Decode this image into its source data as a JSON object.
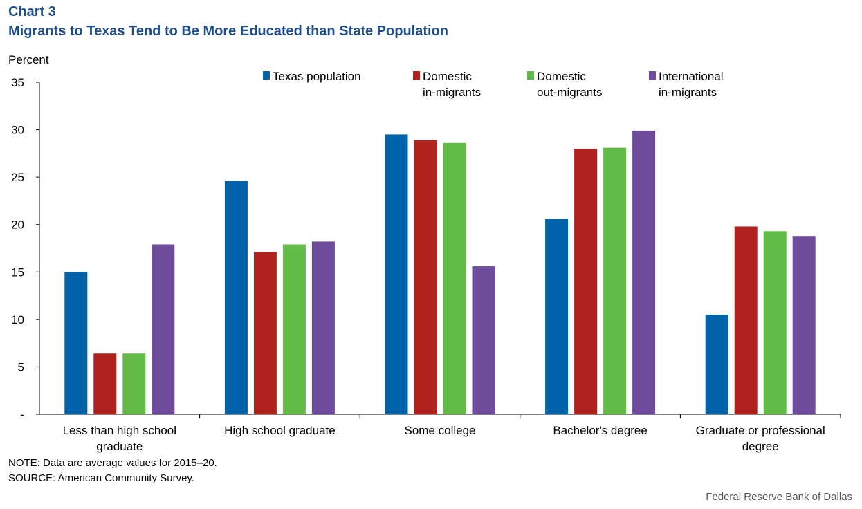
{
  "chart_data": {
    "type": "bar",
    "title": "Chart 3",
    "subtitle": "Migrants to Texas Tend to Be More Educated than State Population",
    "ylabel": "Percent",
    "ylim": [
      0,
      35
    ],
    "yticks": [
      "-",
      "5",
      "10",
      "15",
      "20",
      "25",
      "30",
      "35"
    ],
    "grid": false,
    "legend_position": "top",
    "categories": [
      "Less than high school graduate",
      "High school graduate",
      "Some college",
      "Bachelor's degree",
      "Graduate or professional degree"
    ],
    "series": [
      {
        "name": "Texas population",
        "color": "#0062a8",
        "values": [
          15.0,
          24.6,
          29.5,
          20.6,
          10.5
        ]
      },
      {
        "name": "Domestic in-migrants",
        "color": "#b0221e",
        "values": [
          6.4,
          17.1,
          28.9,
          28.0,
          19.8
        ]
      },
      {
        "name": "Domestic out-migrants",
        "color": "#62bb46",
        "values": [
          6.4,
          17.9,
          28.6,
          28.1,
          19.3
        ]
      },
      {
        "name": "International in-migrants",
        "color": "#6f4b9b",
        "values": [
          17.9,
          18.2,
          15.6,
          29.9,
          18.8
        ]
      }
    ]
  },
  "notes": {
    "note": "NOTE: Data are average values for 2015–20.",
    "source": "SOURCE: American Community Survey.",
    "credit": "Federal Reserve Bank of Dallas"
  }
}
